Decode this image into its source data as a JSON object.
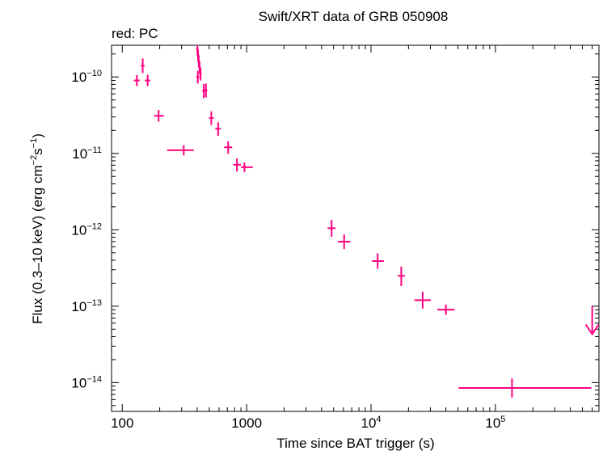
{
  "chart_data": {
    "type": "scatter",
    "title": "Swift/XRT data of GRB 050908",
    "subtitle": "red: PC",
    "xlabel": "Time since BAT trigger (s)",
    "ylabel_parts": [
      "Flux (0.3–10 keV) (erg cm",
      "−2",
      "s",
      "−1",
      ")"
    ],
    "x_scale": "log",
    "y_scale": "log",
    "xlim": [
      82,
      680000
    ],
    "ylim": [
      4.2e-15,
      2.6e-10
    ],
    "x_ticks": [
      {
        "value": 100,
        "base": "100"
      },
      {
        "value": 1000,
        "base": "1000"
      },
      {
        "value": 10000,
        "base": "10",
        "exp": "4"
      },
      {
        "value": 100000,
        "base": "10",
        "exp": "5"
      }
    ],
    "y_ticks": [
      {
        "value": 1e-10,
        "base": "10",
        "exp": "−10"
      },
      {
        "value": 1e-11,
        "base": "10",
        "exp": "−11"
      },
      {
        "value": 1e-12,
        "base": "10",
        "exp": "−12"
      },
      {
        "value": 1e-13,
        "base": "10",
        "exp": "−13"
      },
      {
        "value": 1e-14,
        "base": "10",
        "exp": "−14"
      }
    ],
    "grid": false,
    "series": [
      {
        "color": "#ff0080",
        "points": [
          {
            "x": 131,
            "xlo": 124,
            "xhi": 138,
            "y": 9e-11,
            "ylo": 7.6e-11,
            "yhi": 1.06e-10
          },
          {
            "x": 146,
            "xlo": 141,
            "xhi": 151,
            "y": 1.4e-10,
            "ylo": 1.13e-10,
            "yhi": 1.75e-10
          },
          {
            "x": 160,
            "xlo": 152,
            "xhi": 168,
            "y": 9e-11,
            "ylo": 7.6e-11,
            "yhi": 1.07e-10
          },
          {
            "x": 196,
            "xlo": 180,
            "xhi": 216,
            "y": 3.1e-11,
            "ylo": 2.6e-11,
            "yhi": 3.7e-11
          },
          {
            "x": 312,
            "xlo": 230,
            "xhi": 375,
            "y": 1.1e-11,
            "ylo": 9.4e-12,
            "yhi": 1.28e-11
          },
          {
            "x": 402,
            "xlo": 393,
            "xhi": 411,
            "y": 2.3e-10,
            "ylo": 1.95e-10,
            "yhi": 2.75e-10
          },
          {
            "x": 407,
            "xlo": 398,
            "xhi": 416,
            "y": 1.9e-10,
            "ylo": 1.6e-10,
            "yhi": 2.25e-10
          },
          {
            "x": 412,
            "xlo": 403,
            "xhi": 421,
            "y": 1.6e-10,
            "ylo": 1.35e-10,
            "yhi": 1.9e-10
          },
          {
            "x": 418,
            "xlo": 409,
            "xhi": 427,
            "y": 1.35e-10,
            "ylo": 1.13e-10,
            "yhi": 1.6e-10
          },
          {
            "x": 405,
            "xlo": 394,
            "xhi": 416,
            "y": 1e-10,
            "ylo": 8.2e-11,
            "yhi": 1.2e-10
          },
          {
            "x": 426,
            "xlo": 416,
            "xhi": 436,
            "y": 1.1e-10,
            "ylo": 9e-11,
            "yhi": 1.32e-10
          },
          {
            "x": 452,
            "xlo": 440,
            "xhi": 464,
            "y": 6.6e-11,
            "ylo": 5.3e-11,
            "yhi": 8.1e-11
          },
          {
            "x": 471,
            "xlo": 459,
            "xhi": 483,
            "y": 6.7e-11,
            "ylo": 5.4e-11,
            "yhi": 8.2e-11
          },
          {
            "x": 520,
            "xlo": 498,
            "xhi": 543,
            "y": 2.9e-11,
            "ylo": 2.35e-11,
            "yhi": 3.55e-11
          },
          {
            "x": 590,
            "xlo": 560,
            "xhi": 620,
            "y": 2.1e-11,
            "ylo": 1.7e-11,
            "yhi": 2.55e-11
          },
          {
            "x": 710,
            "xlo": 660,
            "xhi": 765,
            "y": 1.2e-11,
            "ylo": 9.9e-12,
            "yhi": 1.44e-11
          },
          {
            "x": 835,
            "xlo": 780,
            "xhi": 900,
            "y": 7.1e-12,
            "ylo": 5.8e-12,
            "yhi": 8.6e-12
          },
          {
            "x": 960,
            "xlo": 900,
            "xhi": 1120,
            "y": 6.6e-12,
            "ylo": 5.7e-12,
            "yhi": 7.6e-12
          },
          {
            "x": 4820,
            "xlo": 4480,
            "xhi": 5180,
            "y": 1.05e-12,
            "ylo": 8.1e-13,
            "yhi": 1.35e-12
          },
          {
            "x": 6080,
            "xlo": 5420,
            "xhi": 6820,
            "y": 7e-13,
            "ylo": 5.6e-13,
            "yhi": 8.7e-13
          },
          {
            "x": 11300,
            "xlo": 10200,
            "xhi": 12700,
            "y": 3.9e-13,
            "ylo": 3.1e-13,
            "yhi": 4.9e-13
          },
          {
            "x": 17500,
            "xlo": 16400,
            "xhi": 18700,
            "y": 2.5e-13,
            "ylo": 1.83e-13,
            "yhi": 3.3e-13
          },
          {
            "x": 26000,
            "xlo": 22300,
            "xhi": 30300,
            "y": 1.2e-13,
            "ylo": 9.3e-14,
            "yhi": 1.55e-13
          },
          {
            "x": 40000,
            "xlo": 34200,
            "xhi": 47000,
            "y": 9e-14,
            "ylo": 7.7e-14,
            "yhi": 1.05e-13
          }
        ],
        "long_point": {
          "x": 136000,
          "xlo": 50500,
          "xhi": 590000,
          "y": 8.5e-15,
          "ylo": 6.4e-15,
          "yhi": 1.13e-14
        },
        "upper_limits": [
          {
            "x": 600000,
            "y": 1e-13,
            "arrow_to": 4.3e-14
          }
        ]
      }
    ]
  }
}
